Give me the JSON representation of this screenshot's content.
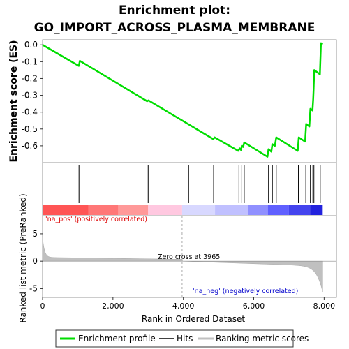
{
  "chart_data": {
    "type": "line",
    "title_line1": "Enrichment plot:",
    "title_line2": "GO_IMPORT_ACROSS_PLASMA_MEMBRANE",
    "es_panel": {
      "ylabel": "Enrichment score (ES)",
      "ylim": [
        -0.7,
        0.03
      ],
      "yticks": [
        "0.0",
        "-0.1",
        "-0.2",
        "-0.3",
        "-0.4",
        "-0.5",
        "-0.6"
      ],
      "ytick_values": [
        0.0,
        -0.1,
        -0.2,
        -0.3,
        -0.4,
        -0.5,
        -0.6
      ],
      "series_color": "#00dd00",
      "x": [
        0,
        1030,
        1060,
        2970,
        3010,
        4850,
        4890,
        5560,
        5600,
        5640,
        5660,
        5700,
        5730,
        6390,
        6420,
        6500,
        6530,
        6600,
        6640,
        7250,
        7280,
        7460,
        7490,
        7580,
        7610,
        7670,
        7690,
        7700,
        7720,
        7880,
        7910,
        7960
      ],
      "y": [
        0.0,
        -0.125,
        -0.095,
        -0.335,
        -0.33,
        -0.56,
        -0.55,
        -0.63,
        -0.615,
        -0.625,
        -0.6,
        -0.607,
        -0.58,
        -0.665,
        -0.62,
        -0.635,
        -0.59,
        -0.6,
        -0.55,
        -0.63,
        -0.55,
        -0.575,
        -0.47,
        -0.485,
        -0.38,
        -0.39,
        -0.32,
        -0.27,
        -0.15,
        -0.175,
        0.01,
        0.003
      ]
    },
    "hits": [
      1035,
      3000,
      4150,
      4860,
      5580,
      5660,
      5730,
      6420,
      6530,
      6640,
      7270,
      7480,
      7610,
      7680,
      7710,
      7890
    ],
    "xlim": [
      0,
      8350
    ],
    "xticks": [
      "0",
      "2,000",
      "4,000",
      "6,000",
      "8,000"
    ],
    "xtick_values": [
      0,
      2000,
      4000,
      6000,
      8000
    ],
    "xlabel": "Rank in Ordered Dataset",
    "n_genes": 7960,
    "metric_panel": {
      "ylabel": "Ranked list metric (PreRanked)",
      "ylim": [
        -6.6,
        8.3
      ],
      "yticks": [
        "5",
        "0",
        "-5"
      ],
      "ytick_values": [
        5,
        0,
        -5
      ],
      "zero_cross_label": "Zero cross at 3965",
      "zero_cross": 3965,
      "pos_label": "'na_pos' (positively correlated)",
      "neg_label": "'na_neg' (negatively correlated)",
      "pos_color": "#ff0000",
      "neg_color": "#0000ff"
    },
    "heat_bar_colors": [
      "#ff5555",
      "#ff7777",
      "#ff9999",
      "#ffc8e0",
      "#d8d8ff",
      "#c0c0ff",
      "#9090ff",
      "#6060ff",
      "#4444ee",
      "#2222dd"
    ],
    "legend": {
      "items": [
        {
          "label": "Enrichment profile",
          "color": "#00dd00"
        },
        {
          "label": "Hits",
          "color": "#000000"
        },
        {
          "label": "Ranking metric scores",
          "color": "#c0c0c0"
        }
      ]
    }
  }
}
